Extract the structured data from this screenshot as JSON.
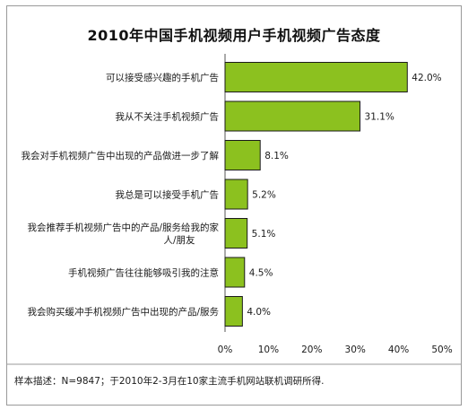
{
  "chart_data": {
    "type": "bar",
    "orientation": "horizontal",
    "title": "2010年中国手机视频用户手机视频广告态度",
    "categories": [
      [
        "可以接受感兴趣的手机广告"
      ],
      [
        "我从不关注手机视频广告"
      ],
      [
        "我会对手机视频广告中出现的产品做进一步了解"
      ],
      [
        "我总是可以接受手机广告"
      ],
      [
        "我会推荐手机视频广告中的产品/服务给我的家",
        "人/朋友"
      ],
      [
        "手机视频广告往往能够吸引我的注意"
      ],
      [
        "我会购买缓冲手机视频广告中出现的产品/服务"
      ]
    ],
    "values": [
      42.0,
      31.1,
      8.1,
      5.2,
      5.1,
      4.5,
      4.0
    ],
    "value_labels": [
      "42.0%",
      "31.1%",
      "8.1%",
      "5.2%",
      "5.1%",
      "4.5%",
      "4.0%"
    ],
    "xlim": [
      0,
      50
    ],
    "x_ticks": [
      0,
      10,
      20,
      30,
      40,
      50
    ],
    "x_tick_labels": [
      "0%",
      "10%",
      "20%",
      "30%",
      "40%",
      "50%"
    ],
    "xlabel": "",
    "ylabel": "",
    "grid": false,
    "bar_color": "#8cc11f",
    "bar_edge_color": "#1a1a1a"
  },
  "footnote": "样本描述：N=9847；于2010年2-3月在10家主流手机网站联机调研所得."
}
